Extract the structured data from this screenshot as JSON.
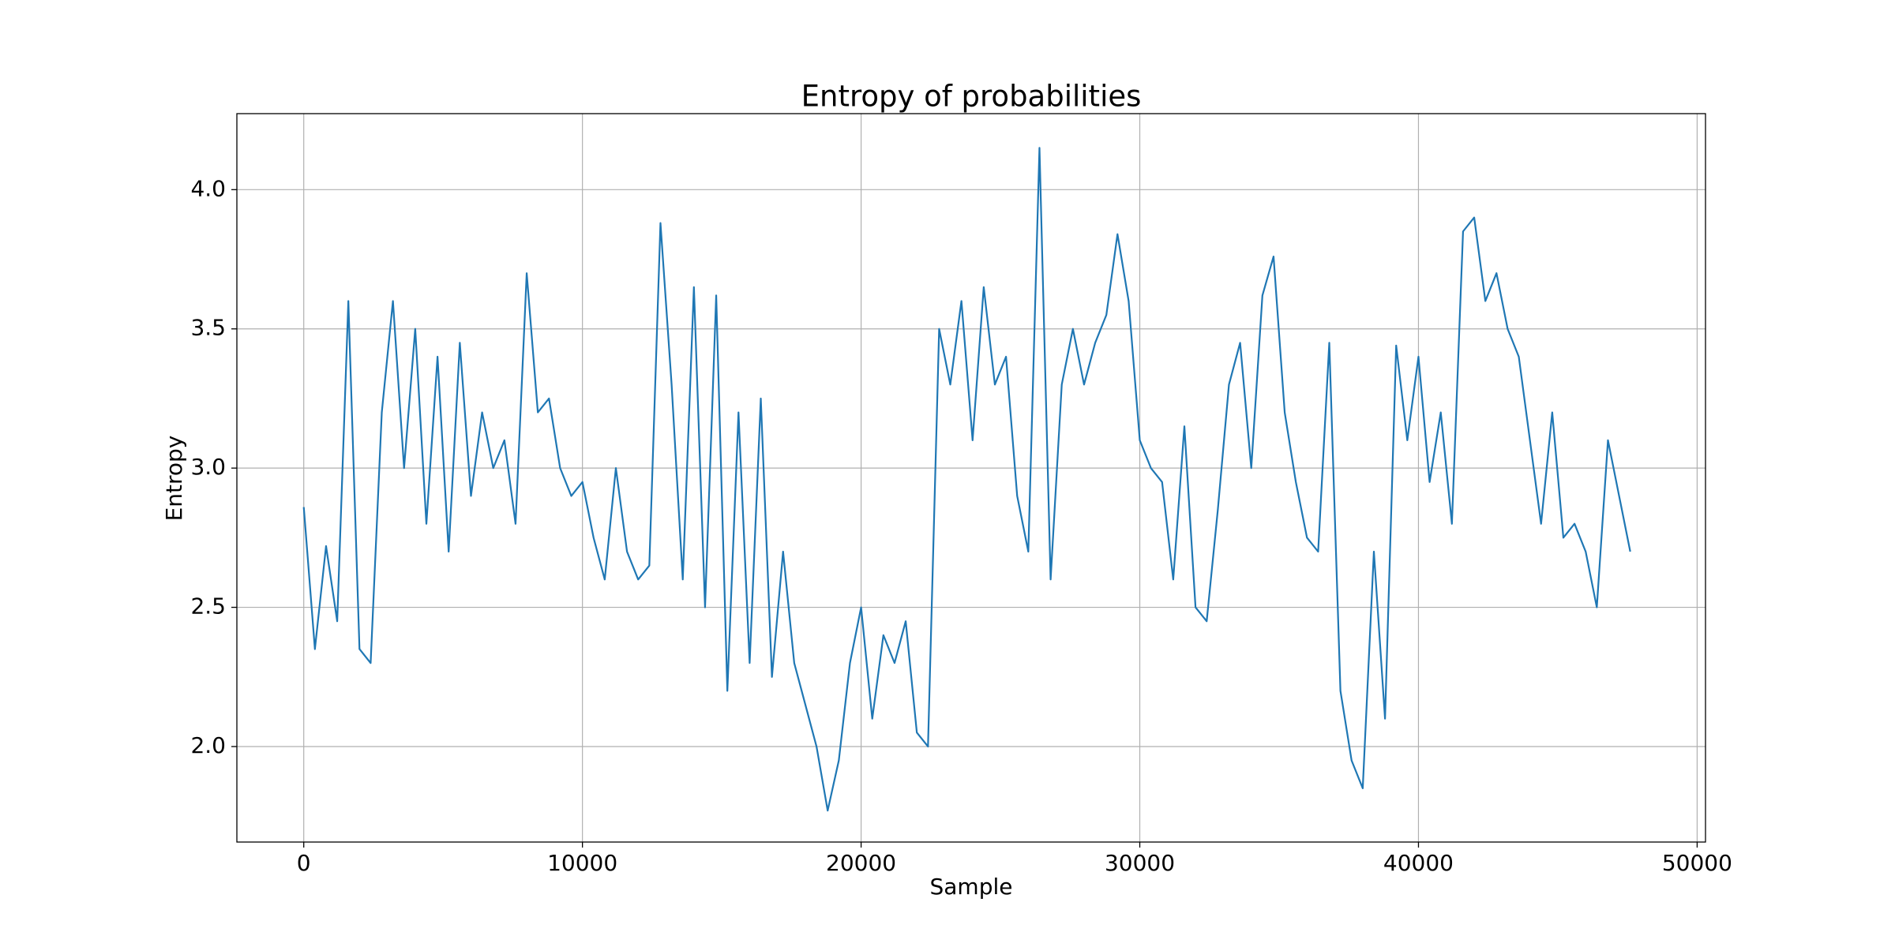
{
  "chart_data": {
    "type": "line",
    "title": "Entropy of probabilities",
    "xlabel": "Sample",
    "ylabel": "Entropy",
    "x": [
      0,
      400,
      800,
      1200,
      1600,
      2000,
      2400,
      2800,
      3200,
      3600,
      4000,
      4400,
      4800,
      5200,
      5600,
      6000,
      6400,
      6800,
      7200,
      7600,
      8000,
      8400,
      8800,
      9200,
      9600,
      10000,
      10400,
      10800,
      11200,
      11600,
      12000,
      12400,
      12800,
      13200,
      13600,
      14000,
      14400,
      14800,
      15200,
      15600,
      16000,
      16400,
      16800,
      17200,
      17600,
      18000,
      18400,
      18800,
      19200,
      19600,
      20000,
      20400,
      20800,
      21200,
      21600,
      22000,
      22400,
      22800,
      23200,
      23600,
      24000,
      24400,
      24800,
      25200,
      25600,
      26000,
      26400,
      26800,
      27200,
      27600,
      28000,
      28400,
      28800,
      29200,
      29600,
      30000,
      30400,
      30800,
      31200,
      31600,
      32000,
      32400,
      32800,
      33200,
      33600,
      34000,
      34400,
      34800,
      35200,
      35600,
      36000,
      36400,
      36800,
      37200,
      37600,
      38000,
      38400,
      38800,
      39200,
      39600,
      40000,
      40400,
      40800,
      41200,
      41600,
      42000,
      42400,
      42800,
      43200,
      43600,
      44000,
      44400,
      44800,
      45200,
      45600,
      46000,
      46400,
      46800,
      47200,
      47600
    ],
    "values": [
      2.86,
      2.35,
      2.72,
      2.45,
      3.6,
      2.35,
      2.3,
      3.2,
      3.6,
      3.0,
      3.5,
      2.8,
      3.4,
      2.7,
      3.45,
      2.9,
      3.2,
      3.0,
      3.1,
      2.8,
      3.7,
      3.2,
      3.25,
      3.0,
      2.9,
      2.95,
      2.75,
      2.6,
      3.0,
      2.7,
      2.6,
      2.65,
      3.88,
      3.3,
      2.6,
      3.65,
      2.5,
      3.62,
      2.2,
      3.2,
      2.3,
      3.25,
      2.25,
      2.7,
      2.3,
      2.15,
      2.0,
      1.77,
      1.95,
      2.3,
      2.5,
      2.1,
      2.4,
      2.3,
      2.45,
      2.05,
      2.0,
      3.5,
      3.3,
      3.6,
      3.1,
      3.65,
      3.3,
      3.4,
      2.9,
      2.7,
      4.15,
      2.6,
      3.3,
      3.5,
      3.3,
      3.45,
      3.55,
      3.84,
      3.6,
      3.1,
      3.0,
      2.95,
      2.6,
      3.15,
      2.5,
      2.45,
      2.85,
      3.3,
      3.45,
      3.0,
      3.62,
      3.76,
      3.2,
      2.95,
      2.75,
      2.7,
      3.45,
      2.2,
      1.95,
      1.85,
      2.7,
      2.1,
      3.44,
      3.1,
      3.4,
      2.95,
      3.2,
      2.8,
      3.85,
      3.9,
      3.6,
      3.7,
      3.5,
      3.4,
      3.1,
      2.8,
      3.2,
      2.75,
      2.8,
      2.7,
      2.5,
      3.1,
      2.9,
      2.7
    ],
    "color": "#1f77b4",
    "xlim": [
      -2400,
      50300
    ],
    "ylim": [
      1.657,
      4.273
    ],
    "xticks": [
      0,
      10000,
      20000,
      30000,
      40000,
      50000
    ],
    "yticks": [
      {
        "value": 2,
        "label": "2.0"
      },
      2.5,
      {
        "value": 3,
        "label": "3.0"
      },
      3.5,
      {
        "value": 4,
        "label": "4.0"
      }
    ],
    "grid": true
  }
}
